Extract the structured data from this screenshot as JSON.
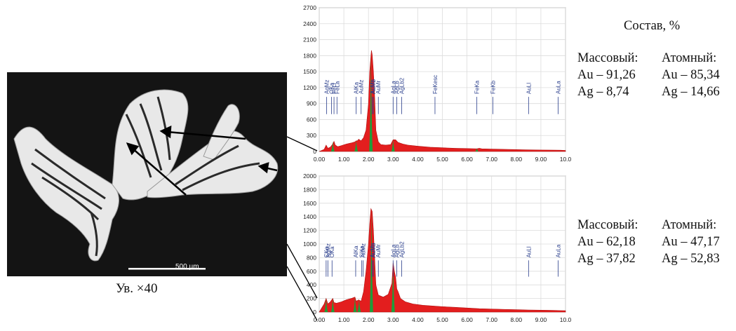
{
  "sem_image": {
    "scalebar_label": "500 µm",
    "magnification": "Ув. ×40"
  },
  "composition": {
    "title": "Состав, %",
    "spectrum1": {
      "mass_header": "Массовый:",
      "atomic_header": "Атомный:",
      "rows": [
        {
          "mass": "Au – 91,26",
          "atomic": "Au – 85,34"
        },
        {
          "mass": "Ag – 8,74",
          "atomic": "Ag – 14,66"
        }
      ]
    },
    "spectrum2": {
      "mass_header": "Массовый:",
      "atomic_header": "Атомный:",
      "rows": [
        {
          "mass": "Au – 62,18",
          "atomic": "Au – 47,17"
        },
        {
          "mass": "Ag – 37,82",
          "atomic": "Ag – 52,83"
        }
      ]
    }
  },
  "colors": {
    "background_fill": "#e31e1e",
    "peak_fill": "#1e9e3a",
    "label_color": "#2a3e8c",
    "marker_color": "#2a3e8c",
    "grid_color": "#dcdcdc"
  },
  "chart_data": [
    {
      "type": "area",
      "title": "",
      "xlabel": "",
      "ylabel": "",
      "xlim": [
        0,
        10
      ],
      "ylim": [
        0,
        2700
      ],
      "xticks": [
        "0.00",
        "1.00",
        "2.00",
        "3.00",
        "4.00",
        "5.00",
        "6.00",
        "7.00",
        "8.00",
        "9.00",
        "10.0"
      ],
      "yticks": [
        0,
        300,
        600,
        900,
        1200,
        1500,
        1800,
        2100,
        2400,
        2700
      ],
      "grid": true,
      "series": [
        {
          "x": [
            0.0,
            0.1,
            0.2,
            0.28,
            0.35,
            0.45,
            0.55,
            0.6,
            0.65,
            0.75,
            0.9,
            1.1,
            1.3,
            1.45,
            1.5,
            1.55,
            1.6,
            1.7,
            1.8,
            1.9,
            2.0,
            2.05,
            2.1,
            2.12,
            2.15,
            2.2,
            2.25,
            2.3,
            2.4,
            2.5,
            2.7,
            2.9,
            3.0,
            3.1,
            3.2,
            3.4,
            3.6,
            4.0,
            4.5,
            5.0,
            5.5,
            6.0,
            6.4,
            6.5,
            6.6,
            7.0,
            7.5,
            8.0,
            8.5,
            9.0,
            9.5,
            9.8,
            10.0
          ],
          "y": [
            0,
            20,
            40,
            120,
            60,
            80,
            140,
            190,
            120,
            90,
            110,
            140,
            160,
            180,
            200,
            200,
            230,
            200,
            260,
            400,
            900,
            1500,
            1800,
            1900,
            1820,
            1500,
            1030,
            400,
            180,
            130,
            120,
            130,
            220,
            220,
            170,
            140,
            120,
            100,
            80,
            70,
            60,
            55,
            50,
            60,
            50,
            45,
            40,
            35,
            30,
            28,
            26,
            24,
            20
          ]
        }
      ],
      "peaks": [
        {
          "x": 0.55,
          "y": 190
        },
        {
          "x": 1.5,
          "y": 200
        },
        {
          "x": 2.1,
          "y": 1850
        },
        {
          "x": 3.0,
          "y": 220
        },
        {
          "x": 6.4,
          "y": 60
        }
      ],
      "annotations": [
        {
          "label": "AgMz",
          "x": 0.3
        },
        {
          "label": "OKa",
          "x": 0.5
        },
        {
          "label": "FeLl",
          "x": 0.6
        },
        {
          "label": "FeLa",
          "x": 0.72
        },
        {
          "label": "AlKa",
          "x": 1.5
        },
        {
          "label": "AuMz",
          "x": 1.7
        },
        {
          "label": "AuMa",
          "x": 2.15
        },
        {
          "label": "AuMb",
          "x": 2.2
        },
        {
          "label": "AuMr",
          "x": 2.4
        },
        {
          "label": "AgLa",
          "x": 3.0
        },
        {
          "label": "AgLb",
          "x": 3.15
        },
        {
          "label": "AgLb2",
          "x": 3.35
        },
        {
          "label": "FeKesc",
          "x": 4.7
        },
        {
          "label": "FeKa",
          "x": 6.4
        },
        {
          "label": "FeKb",
          "x": 7.05
        },
        {
          "label": "AuLl",
          "x": 8.5
        },
        {
          "label": "AuLa",
          "x": 9.7
        }
      ]
    },
    {
      "type": "area",
      "title": "",
      "xlabel": "",
      "ylabel": "",
      "xlim": [
        0,
        10
      ],
      "ylim": [
        0,
        2000
      ],
      "xticks": [
        "0.00",
        "1.00",
        "2.00",
        "3.00",
        "4.00",
        "5.00",
        "6.00",
        "7.00",
        "8.00",
        "9.00",
        "10.0"
      ],
      "yticks": [
        0,
        200,
        400,
        600,
        800,
        1000,
        1200,
        1400,
        1600,
        1800,
        2000
      ],
      "grid": true,
      "series": [
        {
          "x": [
            0.0,
            0.1,
            0.2,
            0.28,
            0.35,
            0.45,
            0.55,
            0.6,
            0.7,
            0.9,
            1.1,
            1.3,
            1.45,
            1.5,
            1.6,
            1.7,
            1.8,
            1.9,
            2.0,
            2.05,
            2.1,
            2.15,
            2.2,
            2.25,
            2.3,
            2.4,
            2.6,
            2.8,
            2.95,
            3.0,
            3.05,
            3.1,
            3.15,
            3.2,
            3.3,
            3.5,
            3.8,
            4.2,
            4.6,
            5.0,
            5.5,
            6.0,
            6.5,
            7.0,
            7.5,
            8.0,
            8.5,
            9.0,
            9.5,
            9.8,
            10.0
          ],
          "y": [
            0,
            60,
            120,
            200,
            120,
            150,
            200,
            140,
            130,
            150,
            180,
            200,
            220,
            160,
            180,
            160,
            300,
            600,
            1000,
            1300,
            1520,
            1480,
            1200,
            800,
            400,
            250,
            220,
            260,
            420,
            730,
            600,
            520,
            340,
            300,
            200,
            150,
            120,
            100,
            90,
            80,
            70,
            60,
            50,
            45,
            40,
            35,
            30,
            28,
            25,
            22,
            20
          ]
        }
      ],
      "peaks": [
        {
          "x": 0.28,
          "y": 200
        },
        {
          "x": 0.55,
          "y": 200
        },
        {
          "x": 1.45,
          "y": 220
        },
        {
          "x": 1.62,
          "y": 180
        },
        {
          "x": 2.12,
          "y": 1500
        },
        {
          "x": 3.0,
          "y": 730
        }
      ],
      "annotations": [
        {
          "label": "CKa",
          "x": 0.28
        },
        {
          "label": "AgMz",
          "x": 0.35
        },
        {
          "label": "OKa",
          "x": 0.52
        },
        {
          "label": "AlKa",
          "x": 1.48
        },
        {
          "label": "SiKa",
          "x": 1.72
        },
        {
          "label": "AuMz",
          "x": 1.78
        },
        {
          "label": "AuMa",
          "x": 2.15
        },
        {
          "label": "AuMb",
          "x": 2.2
        },
        {
          "label": "AuMr",
          "x": 2.4
        },
        {
          "label": "AgLa",
          "x": 3.0
        },
        {
          "label": "AgLb",
          "x": 3.15
        },
        {
          "label": "AgLb2",
          "x": 3.35
        },
        {
          "label": "AuLl",
          "x": 8.5
        },
        {
          "label": "AuLa",
          "x": 9.7
        }
      ]
    }
  ]
}
